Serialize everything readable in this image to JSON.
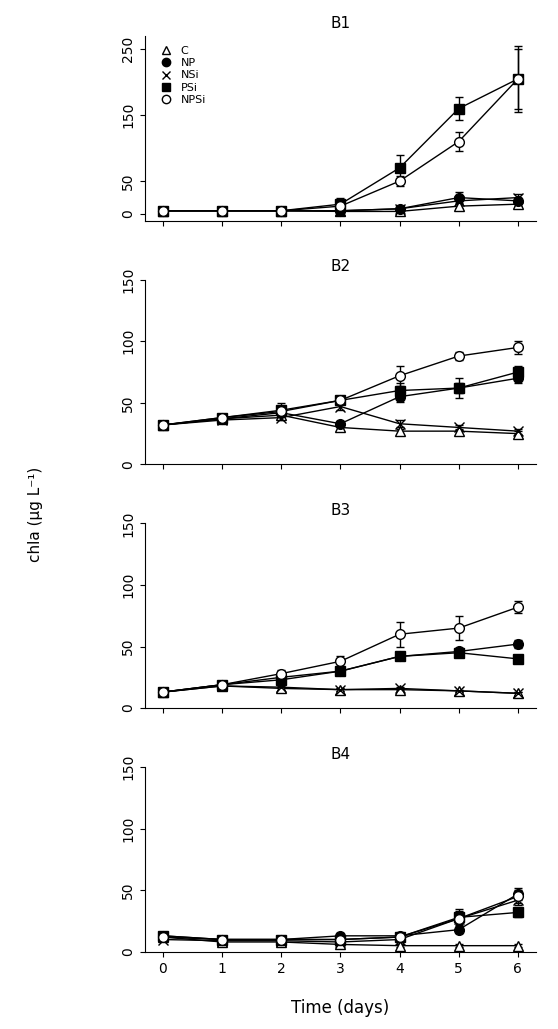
{
  "ylabel": "chla (μg L⁻¹)",
  "xlabel": "Time (days)",
  "chart_data": [
    {
      "type": "line",
      "title": "B1",
      "legend": "upper left",
      "tick_labels": "y",
      "x": [
        0,
        1,
        2,
        3,
        4,
        5,
        6
      ],
      "xlim": [
        -0.3,
        6.3
      ],
      "xticks": [
        0,
        1,
        2,
        3,
        4,
        5,
        6
      ],
      "ylim": [
        -10,
        270
      ],
      "yticks": [
        0,
        50,
        150,
        250
      ],
      "series": [
        {
          "name": "C",
          "color": "#000000",
          "marker": "open_triangle",
          "values": [
            5,
            5,
            5,
            4,
            4,
            12,
            15
          ],
          "errors": [
            0,
            0,
            0,
            0,
            0,
            3,
            3
          ]
        },
        {
          "name": "NP",
          "color": "#000000",
          "marker": "filled_circle",
          "values": [
            5,
            5,
            5,
            5,
            8,
            25,
            20
          ],
          "errors": [
            0,
            0,
            0,
            0,
            3,
            8,
            5
          ]
        },
        {
          "name": "NSi",
          "color": "#000000",
          "marker": "x",
          "values": [
            5,
            5,
            5,
            5,
            8,
            20,
            25
          ],
          "errors": [
            0,
            0,
            0,
            0,
            3,
            5,
            5
          ]
        },
        {
          "name": "PSi",
          "color": "#000000",
          "marker": "filled_square",
          "values": [
            5,
            5,
            5,
            15,
            70,
            160,
            205
          ],
          "errors": [
            0,
            0,
            0,
            10,
            20,
            18,
            50
          ]
        },
        {
          "name": "NPSi",
          "color": "#000000",
          "marker": "open_circle",
          "values": [
            5,
            5,
            5,
            12,
            50,
            110,
            205
          ],
          "errors": [
            0,
            0,
            0,
            5,
            8,
            15,
            45
          ]
        }
      ]
    },
    {
      "type": "line",
      "title": "B2",
      "tick_labels": "y",
      "x": [
        0,
        1,
        2,
        3,
        4,
        5,
        6
      ],
      "xlim": [
        -0.3,
        6.3
      ],
      "xticks": [
        0,
        1,
        2,
        3,
        4,
        5,
        6
      ],
      "ylim": [
        0,
        150
      ],
      "yticks": [
        0,
        50,
        100,
        150
      ],
      "series": [
        {
          "name": "C",
          "color": "#000000",
          "marker": "open_triangle",
          "values": [
            32,
            37,
            40,
            30,
            27,
            27,
            25
          ],
          "errors": [
            2,
            2,
            2,
            2,
            2,
            2,
            2
          ]
        },
        {
          "name": "NP",
          "color": "#000000",
          "marker": "filled_circle",
          "values": [
            32,
            37,
            42,
            33,
            55,
            62,
            70
          ],
          "errors": [
            2,
            2,
            3,
            2,
            4,
            4,
            4
          ]
        },
        {
          "name": "NSi",
          "color": "#000000",
          "marker": "x",
          "values": [
            32,
            36,
            38,
            47,
            33,
            30,
            27
          ],
          "errors": [
            2,
            2,
            2,
            3,
            3,
            2,
            2
          ]
        },
        {
          "name": "PSi",
          "color": "#000000",
          "marker": "filled_square",
          "values": [
            32,
            38,
            44,
            52,
            60,
            62,
            75
          ],
          "errors": [
            2,
            2,
            6,
            3,
            6,
            8,
            5
          ]
        },
        {
          "name": "NPSi",
          "color": "#000000",
          "marker": "open_circle",
          "values": [
            32,
            38,
            43,
            52,
            72,
            88,
            95
          ],
          "errors": [
            2,
            2,
            4,
            3,
            8,
            3,
            5
          ]
        }
      ]
    },
    {
      "type": "line",
      "title": "B3",
      "tick_labels": "y",
      "x": [
        0,
        1,
        2,
        3,
        4,
        5,
        6
      ],
      "xlim": [
        -0.3,
        6.3
      ],
      "xticks": [
        0,
        1,
        2,
        3,
        4,
        5,
        6
      ],
      "ylim": [
        0,
        150
      ],
      "yticks": [
        0,
        50,
        100,
        150
      ],
      "series": [
        {
          "name": "C",
          "color": "#000000",
          "marker": "open_triangle",
          "values": [
            13,
            18,
            16,
            15,
            15,
            14,
            12
          ],
          "errors": [
            1,
            1,
            1,
            1,
            1,
            1,
            1
          ]
        },
        {
          "name": "NP",
          "color": "#000000",
          "marker": "filled_circle",
          "values": [
            13,
            19,
            25,
            30,
            42,
            46,
            52
          ],
          "errors": [
            1,
            2,
            2,
            3,
            3,
            3,
            3
          ]
        },
        {
          "name": "NSi",
          "color": "#000000",
          "marker": "x",
          "values": [
            13,
            18,
            17,
            15,
            16,
            14,
            12
          ],
          "errors": [
            1,
            1,
            1,
            1,
            1,
            1,
            1
          ]
        },
        {
          "name": "PSi",
          "color": "#000000",
          "marker": "filled_square",
          "values": [
            13,
            19,
            23,
            30,
            42,
            45,
            40
          ],
          "errors": [
            1,
            2,
            2,
            3,
            3,
            3,
            3
          ]
        },
        {
          "name": "NPSi",
          "color": "#000000",
          "marker": "open_circle",
          "values": [
            13,
            19,
            28,
            38,
            60,
            65,
            82
          ],
          "errors": [
            1,
            2,
            3,
            4,
            10,
            10,
            5
          ]
        }
      ]
    },
    {
      "type": "line",
      "title": "B4",
      "x": [
        0,
        1,
        2,
        3,
        4,
        5,
        6
      ],
      "xlim": [
        -0.3,
        6.3
      ],
      "xticks": [
        0,
        1,
        2,
        3,
        4,
        5,
        6
      ],
      "ylim": [
        0,
        150
      ],
      "yticks": [
        0,
        50,
        100,
        150
      ],
      "series": [
        {
          "name": "C",
          "color": "#000000",
          "marker": "open_triangle",
          "values": [
            12,
            8,
            8,
            6,
            5,
            5,
            5
          ],
          "errors": [
            1,
            1,
            1,
            1,
            1,
            1,
            1
          ]
        },
        {
          "name": "NP",
          "color": "#000000",
          "marker": "filled_circle",
          "values": [
            13,
            10,
            10,
            13,
            13,
            18,
            47
          ],
          "errors": [
            1,
            2,
            1,
            2,
            2,
            3,
            5
          ]
        },
        {
          "name": "NSi",
          "color": "#000000",
          "marker": "x",
          "values": [
            10,
            9,
            9,
            8,
            10,
            27,
            42
          ],
          "errors": [
            1,
            1,
            1,
            1,
            2,
            5,
            4
          ]
        },
        {
          "name": "PSi",
          "color": "#000000",
          "marker": "filled_square",
          "values": [
            13,
            10,
            10,
            10,
            12,
            28,
            32
          ],
          "errors": [
            1,
            2,
            1,
            2,
            3,
            5,
            4
          ]
        },
        {
          "name": "NPSi",
          "color": "#000000",
          "marker": "open_circle",
          "values": [
            12,
            10,
            10,
            10,
            12,
            27,
            45
          ],
          "errors": [
            1,
            1,
            1,
            2,
            2,
            8,
            5
          ]
        }
      ]
    }
  ]
}
